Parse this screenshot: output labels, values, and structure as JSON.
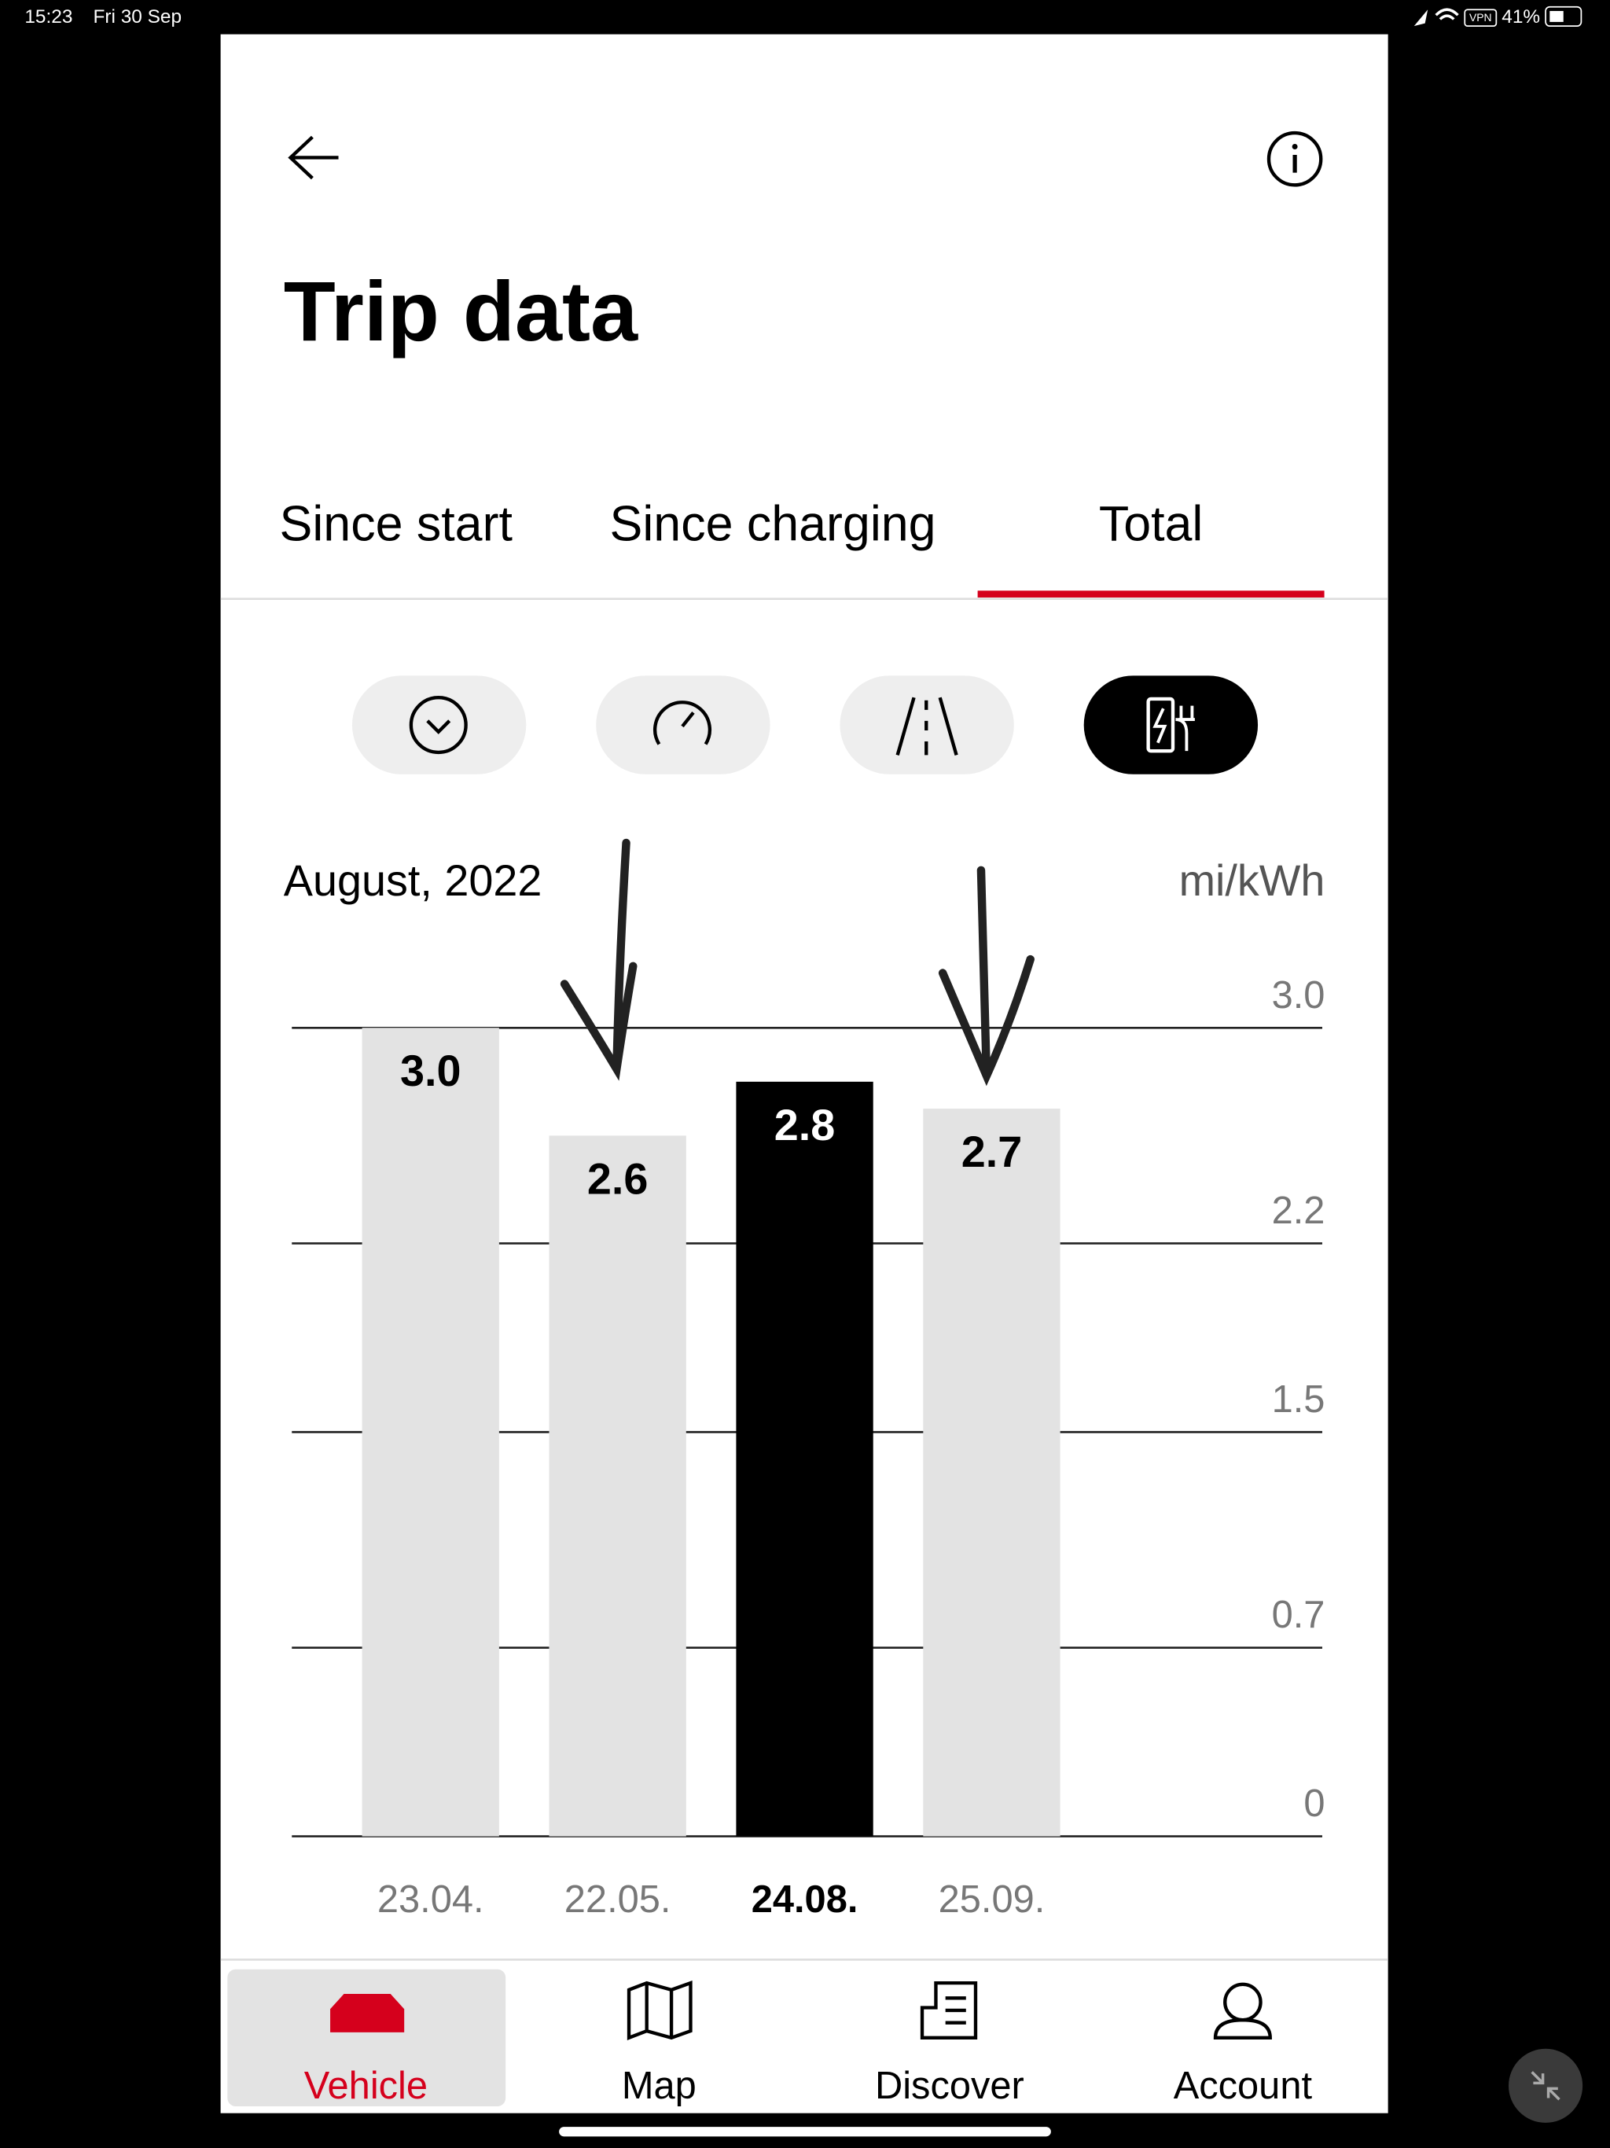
{
  "status_bar": {
    "time": "15:23",
    "date": "Fri 30 Sep",
    "vpn": "VPN",
    "battery": "41%"
  },
  "header": {
    "title": "Trip data"
  },
  "tabs": {
    "items": [
      "Since start",
      "Since charging",
      "Total"
    ],
    "active": 2
  },
  "chart_data": {
    "type": "bar",
    "subtitle": "August, 2022",
    "y_label": "mi/kWh",
    "categories": [
      "23.04.",
      "22.05.",
      "24.08.",
      "25.09."
    ],
    "values": [
      3,
      2.6,
      2.8,
      2.7
    ],
    "value_labels": [
      "3.0",
      "2.6",
      "2.8",
      "2.7"
    ],
    "colors": [
      "#e3e3e3",
      "#e3e3e3",
      "#000000",
      "#e3e3e3"
    ],
    "selected_index": 2,
    "ylim": [
      0,
      3
    ],
    "yticks": [
      0,
      0.7,
      1.5,
      2.2,
      {
        "value": 3,
        "label": "3.0"
      }
    ],
    "grid": true
  },
  "nav": {
    "items": [
      "Vehicle",
      "Map",
      "Discover",
      "Account"
    ],
    "active": 0
  }
}
